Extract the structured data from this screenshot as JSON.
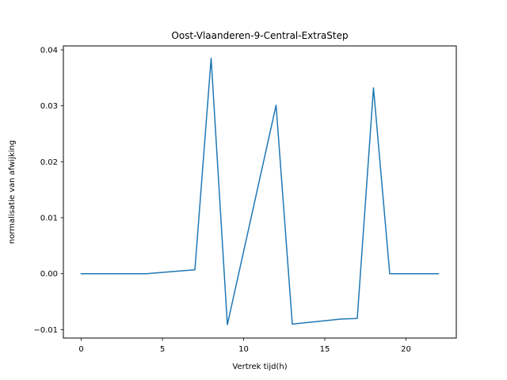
{
  "chart_data": {
    "type": "line",
    "title": "Oost-Vlaanderen-9-Central-ExtraStep",
    "xlabel": "Vertrek tijd(h)",
    "ylabel": "normalisatie van afwijking",
    "xlim": [
      -1.1,
      23.1
    ],
    "ylim": [
      -0.0115,
      0.0407
    ],
    "x_ticks": [
      0,
      5,
      10,
      15,
      20
    ],
    "x_tick_labels": [
      "0",
      "5",
      "10",
      "15",
      "20"
    ],
    "y_ticks": [
      -0.01,
      0.0,
      0.01,
      0.02,
      0.03,
      0.04
    ],
    "y_tick_labels": [
      "−0.01",
      "0.00",
      "0.01",
      "0.02",
      "0.03",
      "0.04"
    ],
    "grid": false,
    "series": [
      {
        "color": "#1f77b4",
        "x": [
          0,
          4,
          7,
          8,
          9,
          12,
          13,
          16,
          17,
          18,
          19,
          22
        ],
        "values": [
          0.0,
          0.0,
          0.0007,
          0.0385,
          -0.0091,
          0.0301,
          -0.009,
          -0.0081,
          -0.008,
          0.0332,
          0.0,
          0.0
        ]
      }
    ]
  }
}
